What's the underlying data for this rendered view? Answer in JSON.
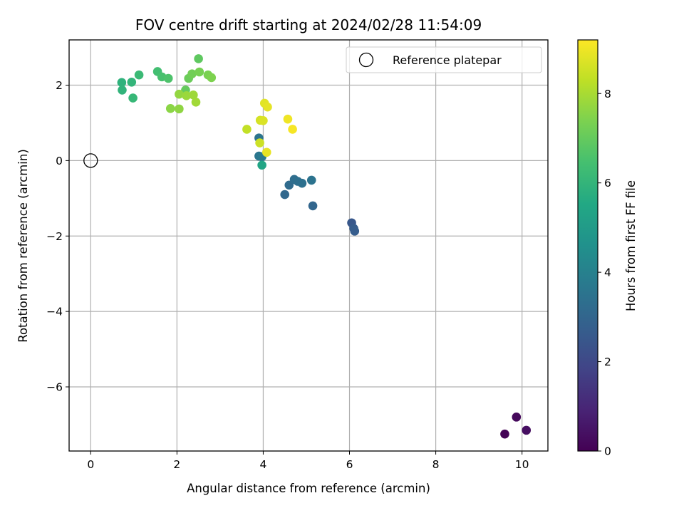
{
  "chart_data": {
    "type": "scatter",
    "title": "FOV centre drift starting at 2024/02/28 11:54:09",
    "xlabel": "Angular distance from reference (arcmin)",
    "ylabel": "Rotation from reference (arcmin)",
    "xlim": [
      -0.5,
      10.6
    ],
    "ylim": [
      -7.7,
      3.2
    ],
    "xticks": [
      0,
      2,
      4,
      6,
      8,
      10
    ],
    "xtick_labels": [
      "0",
      "2",
      "4",
      "6",
      "8",
      "10"
    ],
    "yticks": [
      -6,
      -4,
      -2,
      0,
      2
    ],
    "ytick_labels": [
      "−6",
      "−4",
      "−2",
      "0",
      "2"
    ],
    "grid": true,
    "legend_position": "top-right",
    "reference_point": {
      "label": "Reference platepar",
      "x": 0,
      "y": 0
    },
    "colorbar": {
      "label": "Hours from first FF file",
      "range": [
        0,
        9.2
      ],
      "ticks": [
        0,
        2,
        4,
        6,
        8
      ],
      "tick_labels": [
        "0",
        "2",
        "4",
        "6",
        "8"
      ],
      "colormap": "viridis"
    },
    "series": [
      {
        "points": [
          {
            "x": 9.6,
            "y": -7.25,
            "c": 0.05
          },
          {
            "x": 9.87,
            "y": -6.8,
            "c": 0.2
          },
          {
            "x": 10.1,
            "y": -7.15,
            "c": 0.35
          },
          {
            "x": 6.05,
            "y": -1.65,
            "c": 2.5
          },
          {
            "x": 6.1,
            "y": -1.8,
            "c": 2.65
          },
          {
            "x": 6.12,
            "y": -1.87,
            "c": 2.7
          },
          {
            "x": 5.15,
            "y": -1.2,
            "c": 3.0
          },
          {
            "x": 4.5,
            "y": -0.9,
            "c": 3.1
          },
          {
            "x": 4.6,
            "y": -0.65,
            "c": 3.2
          },
          {
            "x": 4.72,
            "y": -0.5,
            "c": 3.3
          },
          {
            "x": 4.8,
            "y": -0.55,
            "c": 3.35
          },
          {
            "x": 4.9,
            "y": -0.6,
            "c": 3.4
          },
          {
            "x": 5.12,
            "y": -0.52,
            "c": 3.5
          },
          {
            "x": 3.9,
            "y": 0.6,
            "c": 3.55
          },
          {
            "x": 3.9,
            "y": 0.12,
            "c": 3.6
          },
          {
            "x": 3.97,
            "y": 0.1,
            "c": 3.7
          },
          {
            "x": 3.97,
            "y": -0.12,
            "c": 5.4
          },
          {
            "x": 0.72,
            "y": 2.07,
            "c": 5.9
          },
          {
            "x": 0.73,
            "y": 1.87,
            "c": 5.95
          },
          {
            "x": 0.95,
            "y": 2.08,
            "c": 6.0
          },
          {
            "x": 0.98,
            "y": 1.66,
            "c": 6.1
          },
          {
            "x": 1.12,
            "y": 2.27,
            "c": 6.2
          },
          {
            "x": 1.55,
            "y": 2.36,
            "c": 6.4
          },
          {
            "x": 1.65,
            "y": 2.22,
            "c": 6.5
          },
          {
            "x": 1.8,
            "y": 2.18,
            "c": 6.6
          },
          {
            "x": 2.5,
            "y": 2.7,
            "c": 6.9
          },
          {
            "x": 2.2,
            "y": 1.87,
            "c": 7.0
          },
          {
            "x": 2.27,
            "y": 2.18,
            "c": 7.1
          },
          {
            "x": 2.35,
            "y": 2.3,
            "c": 7.2
          },
          {
            "x": 2.52,
            "y": 2.35,
            "c": 7.3
          },
          {
            "x": 2.72,
            "y": 2.27,
            "c": 7.35
          },
          {
            "x": 2.8,
            "y": 2.2,
            "c": 7.4
          },
          {
            "x": 1.85,
            "y": 1.38,
            "c": 7.6
          },
          {
            "x": 2.05,
            "y": 1.37,
            "c": 7.65
          },
          {
            "x": 2.05,
            "y": 1.76,
            "c": 7.7
          },
          {
            "x": 2.22,
            "y": 1.72,
            "c": 7.8
          },
          {
            "x": 2.38,
            "y": 1.74,
            "c": 7.85
          },
          {
            "x": 2.44,
            "y": 1.55,
            "c": 7.9
          },
          {
            "x": 3.62,
            "y": 0.83,
            "c": 8.35
          },
          {
            "x": 3.92,
            "y": 0.47,
            "c": 8.5
          },
          {
            "x": 3.93,
            "y": 1.07,
            "c": 8.6
          },
          {
            "x": 4.0,
            "y": 1.06,
            "c": 8.7
          },
          {
            "x": 4.03,
            "y": 1.52,
            "c": 8.8
          },
          {
            "x": 4.1,
            "y": 1.42,
            "c": 8.85
          },
          {
            "x": 4.08,
            "y": 0.22,
            "c": 8.9
          },
          {
            "x": 4.57,
            "y": 1.1,
            "c": 9.0
          },
          {
            "x": 4.68,
            "y": 0.83,
            "c": 9.1
          }
        ]
      }
    ]
  }
}
